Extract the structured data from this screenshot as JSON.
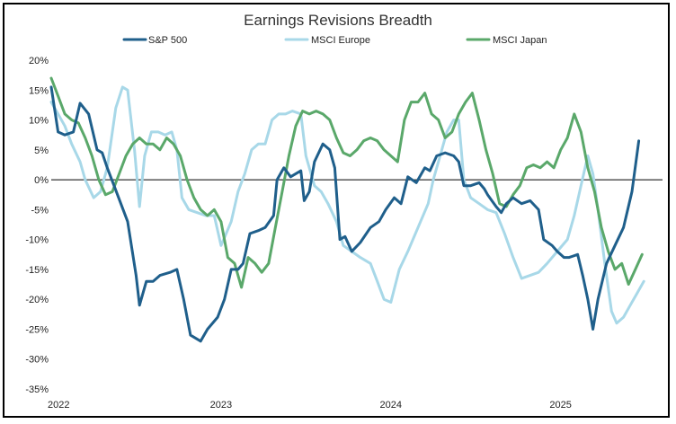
{
  "chart_data": {
    "type": "line",
    "title": "Earnings Revisions Breadth",
    "xlabel": "",
    "ylabel": "",
    "ylim": [
      -35,
      20
    ],
    "xlim": [
      2022.0,
      2025.6
    ],
    "y_ticks": [
      20,
      15,
      10,
      5,
      0,
      -5,
      -10,
      -15,
      -20,
      -25,
      -30,
      -35
    ],
    "y_tick_labels": [
      "20%",
      "15%",
      "10%",
      "5%",
      "0%",
      "-5%",
      "-10%",
      "-15%",
      "-20%",
      "-25%",
      "-30%",
      "-35%"
    ],
    "x_ticks": [
      2022,
      2023,
      2024,
      2025
    ],
    "x_tick_labels": [
      "2022",
      "2023",
      "2024",
      "2025"
    ],
    "zero_line": true,
    "grid": false,
    "legend_position": "top",
    "series": [
      {
        "name": "S&P 500",
        "color": "#1f5f8b",
        "points": [
          [
            2022.0,
            15.5
          ],
          [
            2022.04,
            8.0
          ],
          [
            2022.08,
            7.5
          ],
          [
            2022.13,
            8.0
          ],
          [
            2022.17,
            12.8
          ],
          [
            2022.22,
            11.0
          ],
          [
            2022.27,
            5.0
          ],
          [
            2022.3,
            4.5
          ],
          [
            2022.33,
            2.0
          ],
          [
            2022.37,
            -1.0
          ],
          [
            2022.45,
            -7.0
          ],
          [
            2022.5,
            -16.0
          ],
          [
            2022.52,
            -21.0
          ],
          [
            2022.56,
            -17.0
          ],
          [
            2022.6,
            -17.0
          ],
          [
            2022.64,
            -16.0
          ],
          [
            2022.7,
            -15.5
          ],
          [
            2022.74,
            -15.0
          ],
          [
            2022.78,
            -20.0
          ],
          [
            2022.82,
            -26.0
          ],
          [
            2022.88,
            -27.0
          ],
          [
            2022.92,
            -25.0
          ],
          [
            2022.98,
            -23.0
          ],
          [
            2023.02,
            -20.0
          ],
          [
            2023.06,
            -15.0
          ],
          [
            2023.1,
            -15.0
          ],
          [
            2023.13,
            -14.0
          ],
          [
            2023.17,
            -9.0
          ],
          [
            2023.22,
            -8.5
          ],
          [
            2023.26,
            -8.0
          ],
          [
            2023.31,
            -6.0
          ],
          [
            2023.33,
            0.0
          ],
          [
            2023.37,
            2.0
          ],
          [
            2023.41,
            0.5
          ],
          [
            2023.44,
            1.0
          ],
          [
            2023.47,
            1.5
          ],
          [
            2023.49,
            -3.5
          ],
          [
            2023.52,
            -2.0
          ],
          [
            2023.55,
            3.0
          ],
          [
            2023.6,
            6.0
          ],
          [
            2023.64,
            5.0
          ],
          [
            2023.67,
            2.0
          ],
          [
            2023.7,
            -10.0
          ],
          [
            2023.73,
            -9.5
          ],
          [
            2023.77,
            -12.0
          ],
          [
            2023.82,
            -10.5
          ],
          [
            2023.88,
            -8.0
          ],
          [
            2023.93,
            -7.0
          ],
          [
            2023.97,
            -5.0
          ],
          [
            2024.02,
            -3.0
          ],
          [
            2024.06,
            -4.0
          ],
          [
            2024.1,
            0.5
          ],
          [
            2024.15,
            -0.5
          ],
          [
            2024.2,
            2.0
          ],
          [
            2024.23,
            1.5
          ],
          [
            2024.27,
            4.0
          ],
          [
            2024.32,
            4.5
          ],
          [
            2024.37,
            4.0
          ],
          [
            2024.4,
            3.0
          ],
          [
            2024.43,
            -1.0
          ],
          [
            2024.47,
            -1.0
          ],
          [
            2024.52,
            -0.5
          ],
          [
            2024.55,
            -1.5
          ],
          [
            2024.57,
            -2.5
          ],
          [
            2024.62,
            -4.5
          ],
          [
            2024.65,
            -5.5
          ],
          [
            2024.68,
            -4.0
          ],
          [
            2024.72,
            -3.0
          ],
          [
            2024.77,
            -4.0
          ],
          [
            2024.82,
            -3.5
          ],
          [
            2024.87,
            -5.0
          ],
          [
            2024.9,
            -10.0
          ],
          [
            2024.95,
            -11.0
          ],
          [
            2024.98,
            -12.0
          ],
          [
            2025.02,
            -13.0
          ],
          [
            2025.05,
            -13.0
          ],
          [
            2025.1,
            -12.5
          ],
          [
            2025.13,
            -16.0
          ],
          [
            2025.16,
            -20.0
          ],
          [
            2025.19,
            -25.0
          ],
          [
            2025.22,
            -20.0
          ],
          [
            2025.27,
            -14.0
          ],
          [
            2025.32,
            -11.0
          ],
          [
            2025.37,
            -8.0
          ],
          [
            2025.42,
            -2.0
          ],
          [
            2025.46,
            6.5
          ]
        ]
      },
      {
        "name": "MSCI Europe",
        "color": "#a8d8e8",
        "points": [
          [
            2022.0,
            13.0
          ],
          [
            2022.04,
            11.0
          ],
          [
            2022.08,
            9.0
          ],
          [
            2022.12,
            6.0
          ],
          [
            2022.17,
            3.0
          ],
          [
            2022.2,
            0.0
          ],
          [
            2022.25,
            -3.0
          ],
          [
            2022.29,
            -2.0
          ],
          [
            2022.33,
            2.0
          ],
          [
            2022.38,
            12.0
          ],
          [
            2022.42,
            15.5
          ],
          [
            2022.45,
            15.0
          ],
          [
            2022.49,
            5.0
          ],
          [
            2022.52,
            -4.5
          ],
          [
            2022.55,
            4.0
          ],
          [
            2022.59,
            8.0
          ],
          [
            2022.63,
            8.0
          ],
          [
            2022.67,
            7.5
          ],
          [
            2022.71,
            8.0
          ],
          [
            2022.74,
            5.0
          ],
          [
            2022.77,
            -3.0
          ],
          [
            2022.81,
            -5.0
          ],
          [
            2022.86,
            -5.5
          ],
          [
            2022.91,
            -6.0
          ],
          [
            2022.96,
            -6.0
          ],
          [
            2023.0,
            -11.0
          ],
          [
            2023.03,
            -9.0
          ],
          [
            2023.06,
            -7.0
          ],
          [
            2023.1,
            -2.0
          ],
          [
            2023.14,
            1.0
          ],
          [
            2023.18,
            5.0
          ],
          [
            2023.22,
            6.0
          ],
          [
            2023.26,
            6.0
          ],
          [
            2023.3,
            10.0
          ],
          [
            2023.34,
            11.0
          ],
          [
            2023.38,
            11.0
          ],
          [
            2023.42,
            11.5
          ],
          [
            2023.47,
            11.0
          ],
          [
            2023.5,
            4.0
          ],
          [
            2023.55,
            -1.0
          ],
          [
            2023.59,
            -2.0
          ],
          [
            2023.63,
            -4.0
          ],
          [
            2023.68,
            -7.0
          ],
          [
            2023.72,
            -11.0
          ],
          [
            2023.77,
            -12.0
          ],
          [
            2023.82,
            -13.0
          ],
          [
            2023.88,
            -14.0
          ],
          [
            2023.92,
            -17.0
          ],
          [
            2023.96,
            -20.0
          ],
          [
            2024.0,
            -20.5
          ],
          [
            2024.05,
            -15.0
          ],
          [
            2024.1,
            -12.0
          ],
          [
            2024.16,
            -8.0
          ],
          [
            2024.22,
            -4.0
          ],
          [
            2024.25,
            0.0
          ],
          [
            2024.29,
            4.0
          ],
          [
            2024.33,
            8.0
          ],
          [
            2024.37,
            10.0
          ],
          [
            2024.4,
            10.0
          ],
          [
            2024.43,
            0.0
          ],
          [
            2024.47,
            -3.0
          ],
          [
            2024.52,
            -4.0
          ],
          [
            2024.57,
            -5.0
          ],
          [
            2024.62,
            -5.5
          ],
          [
            2024.67,
            -9.0
          ],
          [
            2024.72,
            -13.0
          ],
          [
            2024.77,
            -16.5
          ],
          [
            2024.82,
            -16.0
          ],
          [
            2024.87,
            -15.5
          ],
          [
            2024.92,
            -14.0
          ],
          [
            2024.98,
            -12.0
          ],
          [
            2025.04,
            -10.0
          ],
          [
            2025.08,
            -6.0
          ],
          [
            2025.12,
            -1.0
          ],
          [
            2025.16,
            4.0
          ],
          [
            2025.19,
            1.0
          ],
          [
            2025.22,
            -5.0
          ],
          [
            2025.26,
            -14.0
          ],
          [
            2025.3,
            -22.0
          ],
          [
            2025.33,
            -24.0
          ],
          [
            2025.37,
            -23.0
          ],
          [
            2025.41,
            -21.0
          ],
          [
            2025.45,
            -19.0
          ],
          [
            2025.49,
            -17.0
          ]
        ]
      },
      {
        "name": "MSCI Japan",
        "color": "#5aa86a",
        "points": [
          [
            2022.0,
            17.0
          ],
          [
            2022.04,
            14.0
          ],
          [
            2022.08,
            11.0
          ],
          [
            2022.12,
            10.0
          ],
          [
            2022.16,
            9.5
          ],
          [
            2022.2,
            7.0
          ],
          [
            2022.24,
            4.0
          ],
          [
            2022.28,
            0.0
          ],
          [
            2022.32,
            -2.5
          ],
          [
            2022.36,
            -2.0
          ],
          [
            2022.4,
            1.0
          ],
          [
            2022.44,
            4.0
          ],
          [
            2022.48,
            6.0
          ],
          [
            2022.52,
            7.0
          ],
          [
            2022.56,
            6.0
          ],
          [
            2022.6,
            6.0
          ],
          [
            2022.64,
            5.0
          ],
          [
            2022.68,
            7.0
          ],
          [
            2022.72,
            6.0
          ],
          [
            2022.76,
            4.0
          ],
          [
            2022.8,
            0.0
          ],
          [
            2022.84,
            -3.0
          ],
          [
            2022.88,
            -5.0
          ],
          [
            2022.92,
            -6.0
          ],
          [
            2022.96,
            -5.0
          ],
          [
            2023.0,
            -7.0
          ],
          [
            2023.04,
            -13.0
          ],
          [
            2023.08,
            -14.0
          ],
          [
            2023.12,
            -18.0
          ],
          [
            2023.16,
            -13.0
          ],
          [
            2023.2,
            -14.0
          ],
          [
            2023.24,
            -15.5
          ],
          [
            2023.28,
            -14.0
          ],
          [
            2023.32,
            -8.0
          ],
          [
            2023.36,
            -2.0
          ],
          [
            2023.4,
            4.0
          ],
          [
            2023.44,
            9.0
          ],
          [
            2023.48,
            11.5
          ],
          [
            2023.52,
            11.0
          ],
          [
            2023.56,
            11.5
          ],
          [
            2023.6,
            11.0
          ],
          [
            2023.64,
            10.0
          ],
          [
            2023.68,
            7.0
          ],
          [
            2023.72,
            4.5
          ],
          [
            2023.76,
            4.0
          ],
          [
            2023.8,
            5.0
          ],
          [
            2023.84,
            6.5
          ],
          [
            2023.88,
            7.0
          ],
          [
            2023.92,
            6.5
          ],
          [
            2023.96,
            5.0
          ],
          [
            2024.0,
            4.0
          ],
          [
            2024.04,
            3.0
          ],
          [
            2024.08,
            10.0
          ],
          [
            2024.12,
            13.0
          ],
          [
            2024.16,
            13.0
          ],
          [
            2024.2,
            14.5
          ],
          [
            2024.24,
            11.0
          ],
          [
            2024.28,
            10.0
          ],
          [
            2024.32,
            7.0
          ],
          [
            2024.36,
            8.0
          ],
          [
            2024.4,
            11.0
          ],
          [
            2024.44,
            13.0
          ],
          [
            2024.48,
            14.5
          ],
          [
            2024.52,
            10.0
          ],
          [
            2024.56,
            5.0
          ],
          [
            2024.6,
            1.0
          ],
          [
            2024.64,
            -4.0
          ],
          [
            2024.68,
            -4.5
          ],
          [
            2024.72,
            -2.5
          ],
          [
            2024.76,
            -1.0
          ],
          [
            2024.8,
            2.0
          ],
          [
            2024.84,
            2.5
          ],
          [
            2024.88,
            2.0
          ],
          [
            2024.92,
            3.0
          ],
          [
            2024.96,
            2.0
          ],
          [
            2025.0,
            5.0
          ],
          [
            2025.04,
            7.0
          ],
          [
            2025.08,
            11.0
          ],
          [
            2025.12,
            8.0
          ],
          [
            2025.16,
            2.0
          ],
          [
            2025.2,
            -2.0
          ],
          [
            2025.24,
            -8.0
          ],
          [
            2025.28,
            -12.0
          ],
          [
            2025.32,
            -15.0
          ],
          [
            2025.36,
            -14.0
          ],
          [
            2025.4,
            -17.5
          ],
          [
            2025.44,
            -15.0
          ],
          [
            2025.48,
            -12.5
          ]
        ]
      }
    ]
  }
}
